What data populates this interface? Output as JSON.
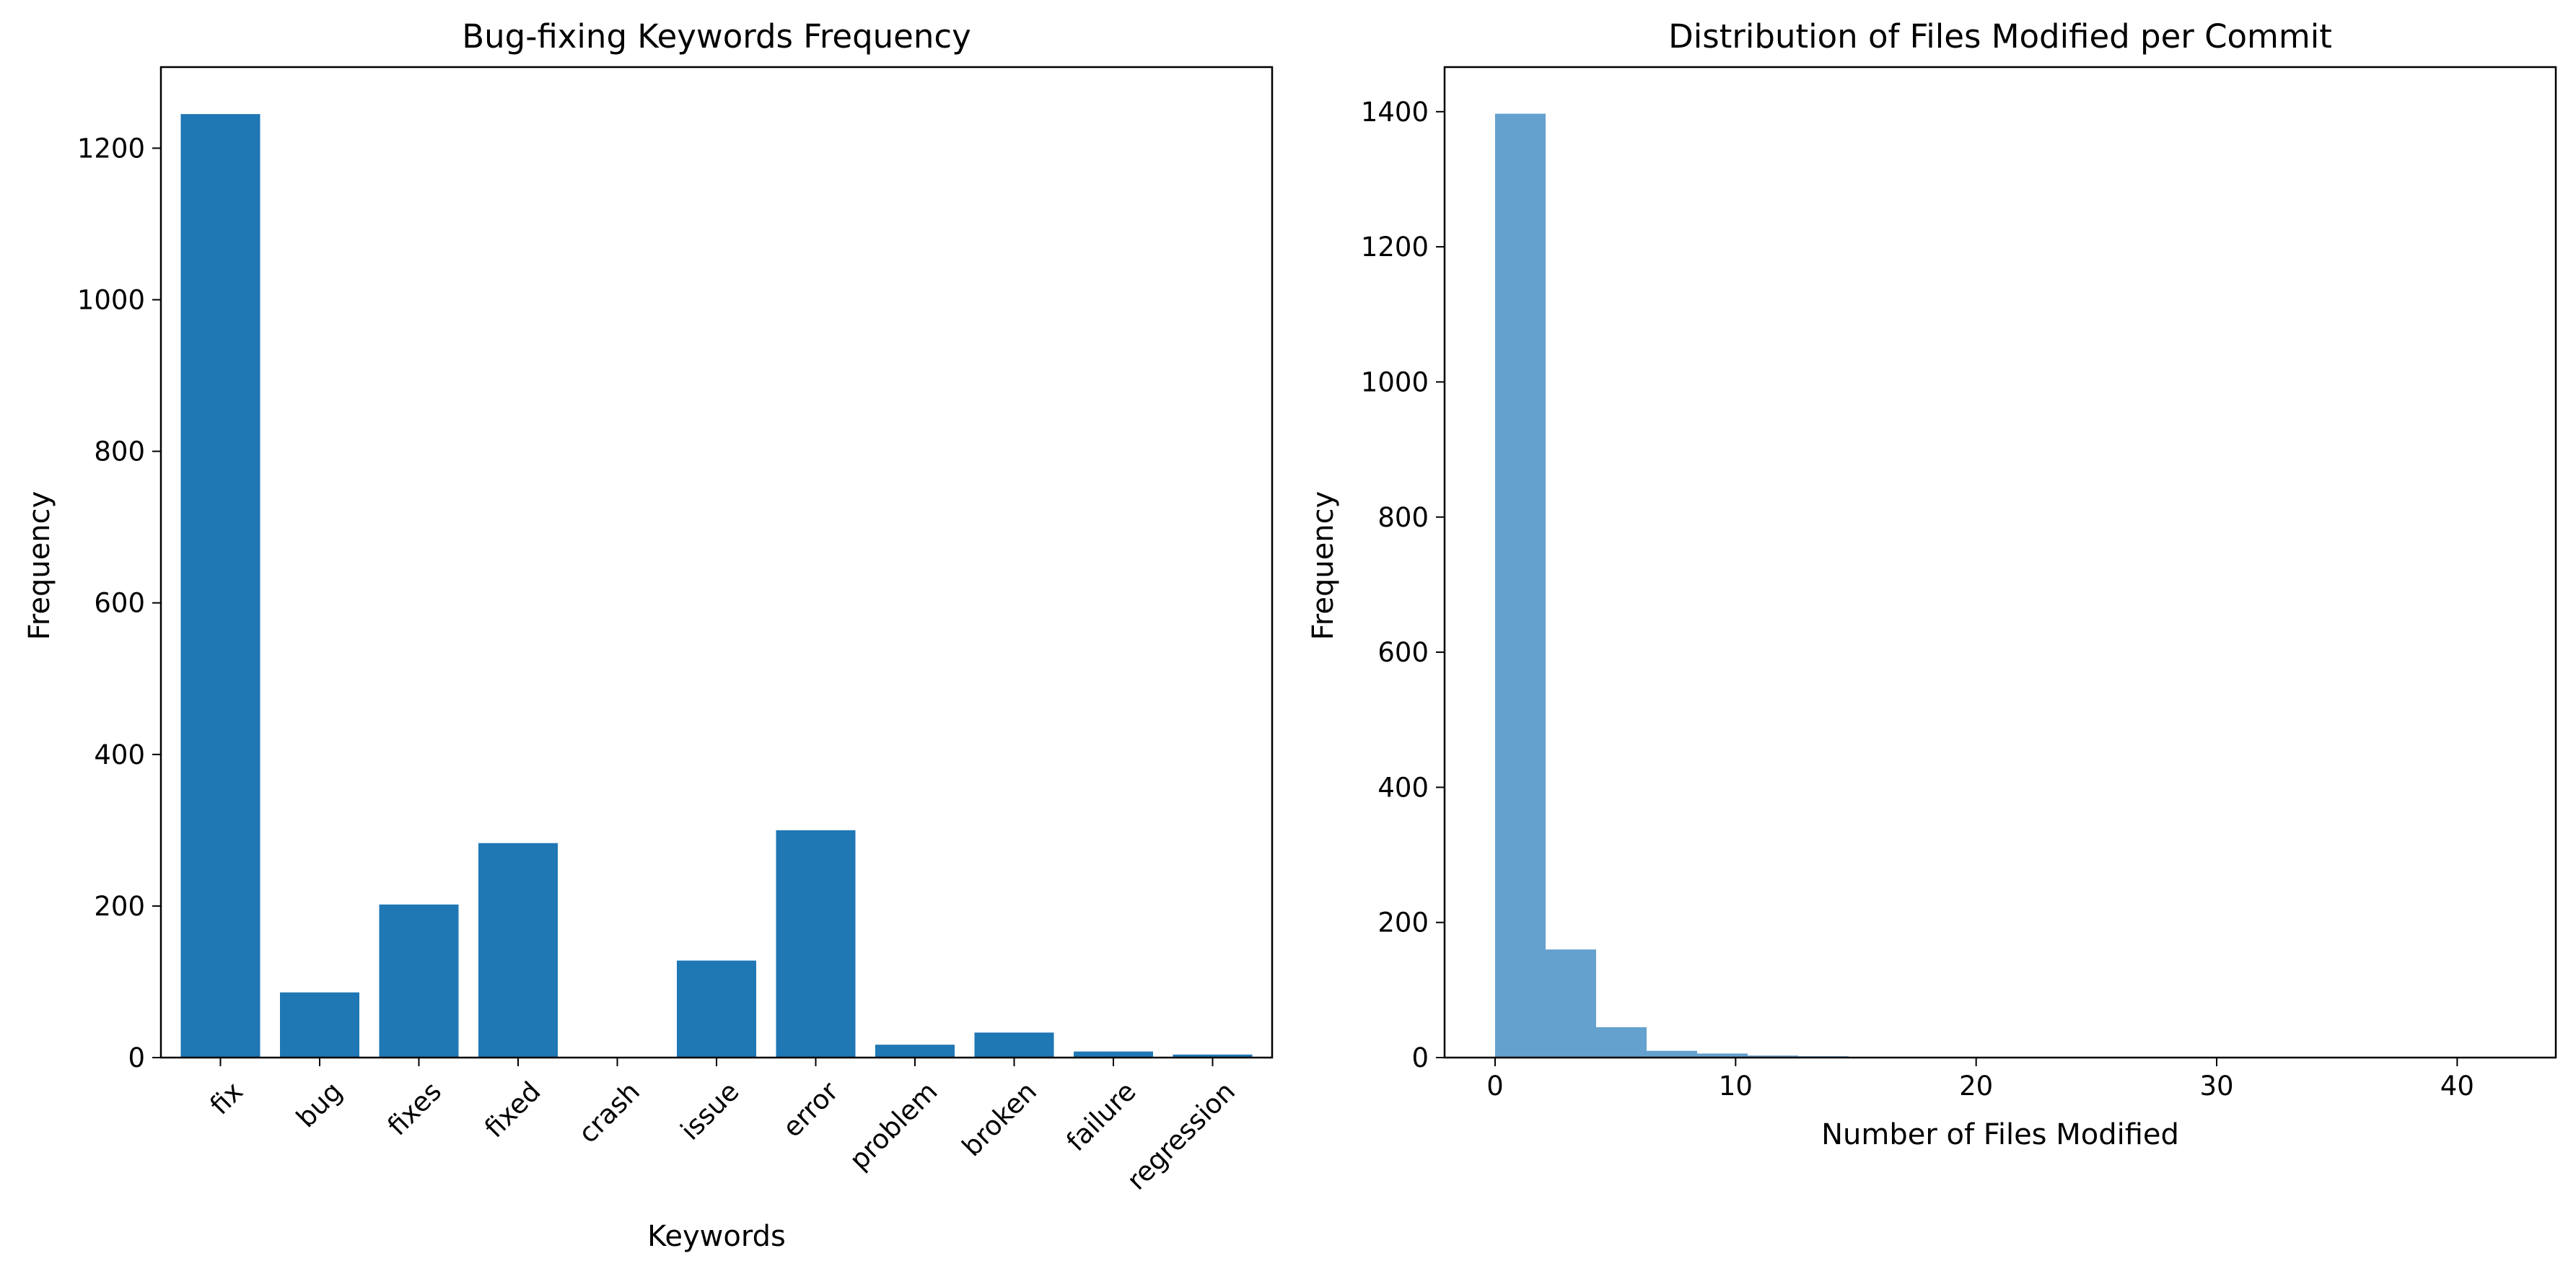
{
  "colors": {
    "bar": "#1f77b4",
    "hist_bar": "#64a1ce",
    "axes": "#000000",
    "background": "#ffffff"
  },
  "chart_data": [
    {
      "type": "bar",
      "title": "Bug-fixing Keywords Frequency",
      "xlabel": "Keywords",
      "ylabel": "Frequency",
      "categories": [
        "fix",
        "bug",
        "fixes",
        "fixed",
        "crash",
        "issue",
        "error",
        "problem",
        "broken",
        "failure",
        "regression"
      ],
      "values": [
        1245,
        86,
        202,
        283,
        0,
        128,
        300,
        17,
        33,
        8,
        4
      ],
      "ylim": [
        0,
        1307
      ],
      "yticks": [
        "0",
        "200",
        "400",
        "600",
        "800",
        "1000",
        "1200"
      ],
      "ytick_values": [
        0,
        200,
        400,
        600,
        800,
        1000,
        1200
      ],
      "xtick_rotation": 45,
      "grid": false,
      "legend": "none"
    },
    {
      "type": "bar",
      "subtype": "histogram",
      "title": "Distribution of Files Modified per Commit",
      "xlabel": "Number of Files Modified",
      "ylabel": "Frequency",
      "bin_edges": [
        0,
        2.1,
        4.2,
        6.3,
        8.4,
        10.5,
        12.6,
        14.7,
        16.8,
        18.9,
        21,
        23.1,
        25.2,
        27.3,
        29.4,
        31.5,
        33.6,
        35.7,
        37.8,
        39.9,
        42
      ],
      "values": [
        1397,
        160,
        45,
        10,
        6,
        3,
        2,
        1,
        1,
        0,
        1,
        0,
        0,
        0,
        0,
        0,
        0,
        0,
        0,
        1
      ],
      "xlim": [
        -2.1,
        44.1
      ],
      "ylim": [
        0,
        1466
      ],
      "xticks": [
        "0",
        "10",
        "20",
        "30",
        "40"
      ],
      "xtick_values": [
        0,
        10,
        20,
        30,
        40
      ],
      "yticks": [
        "0",
        "200",
        "400",
        "600",
        "800",
        "1000",
        "1200",
        "1400"
      ],
      "ytick_values": [
        0,
        200,
        400,
        600,
        800,
        1000,
        1200,
        1400
      ],
      "grid": false,
      "legend": "none"
    }
  ]
}
